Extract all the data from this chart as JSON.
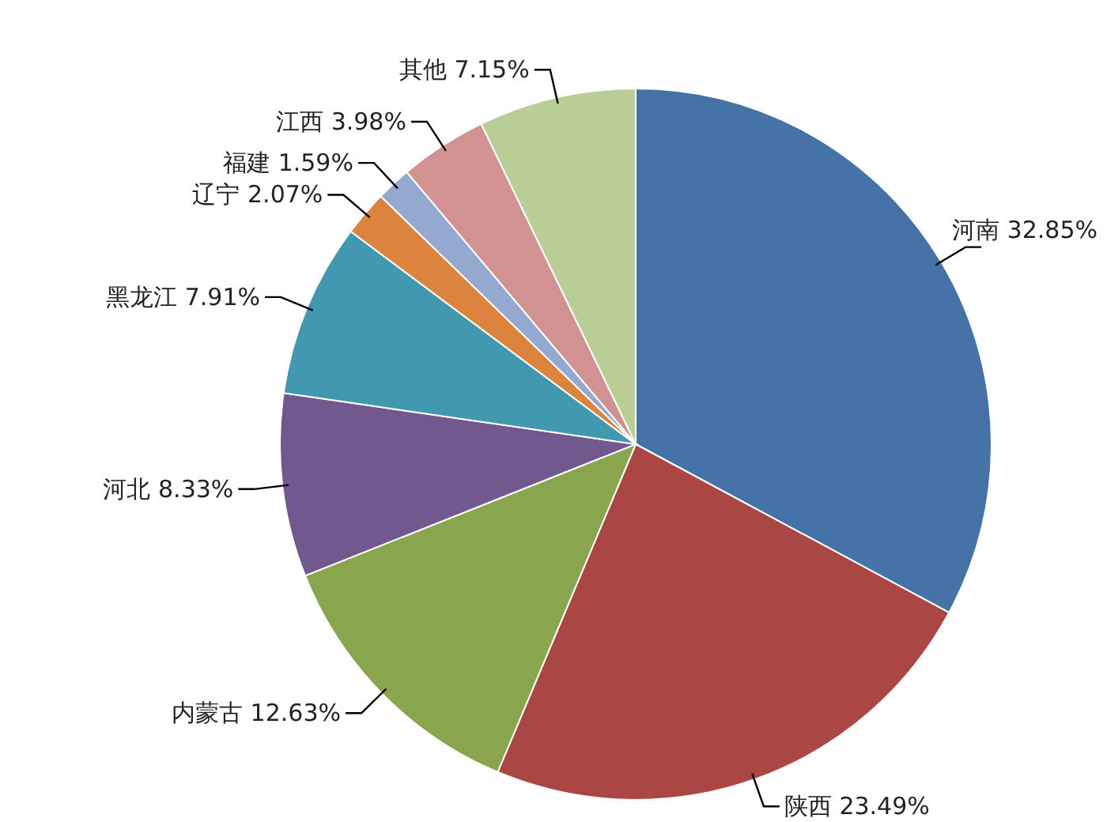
{
  "chart_data": {
    "type": "pie",
    "categories": [
      "河南",
      "陕西",
      "内蒙古",
      "河北",
      "黑龙江",
      "辽宁",
      "福建",
      "江西",
      "其他"
    ],
    "values": [
      32.85,
      23.49,
      12.63,
      8.33,
      7.91,
      2.07,
      1.59,
      3.98,
      7.15
    ],
    "value_labels": [
      "32.85%",
      "23.49%",
      "12.63%",
      "8.33%",
      "7.91%",
      "2.07%",
      "1.59%",
      "3.98%",
      "7.15%"
    ],
    "colors": [
      "#4572a7",
      "#aa4643",
      "#89a54e",
      "#71588f",
      "#4198af",
      "#db843d",
      "#93a9cf",
      "#d19392",
      "#b9cd96"
    ]
  }
}
